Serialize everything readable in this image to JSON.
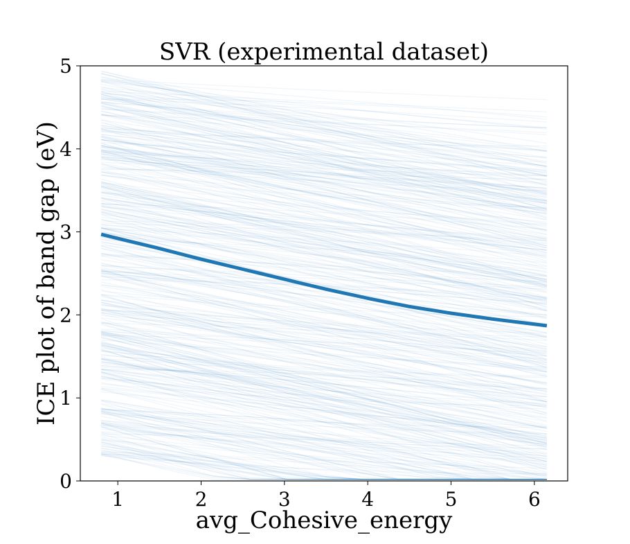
{
  "chart_data": {
    "type": "line",
    "title": "SVR (experimental dataset)",
    "xlabel": "avg_Cohesive_energy",
    "ylabel": "ICE plot of band gap (eV)",
    "xlim": [
      0.55,
      6.4
    ],
    "ylim": [
      0,
      5
    ],
    "x_ticks": [
      1,
      2,
      3,
      4,
      5,
      6
    ],
    "y_ticks": [
      0,
      1,
      2,
      3,
      4,
      5
    ],
    "grid": false,
    "legend": "none",
    "ice_x_range": [
      0.8,
      6.15
    ],
    "ice_lines": {
      "count": 420,
      "color": "#1f77b4",
      "opacity": 0.07,
      "start_value_range": [
        0.3,
        4.95
      ]
    },
    "series": [
      {
        "color": "#1f77b4",
        "x": [
          0.8,
          1.5,
          2.0,
          2.5,
          3.0,
          3.5,
          4.0,
          4.5,
          5.0,
          5.5,
          6.15
        ],
        "y": [
          2.97,
          2.8,
          2.67,
          2.55,
          2.43,
          2.31,
          2.2,
          2.1,
          2.02,
          1.95,
          1.87
        ]
      }
    ]
  }
}
